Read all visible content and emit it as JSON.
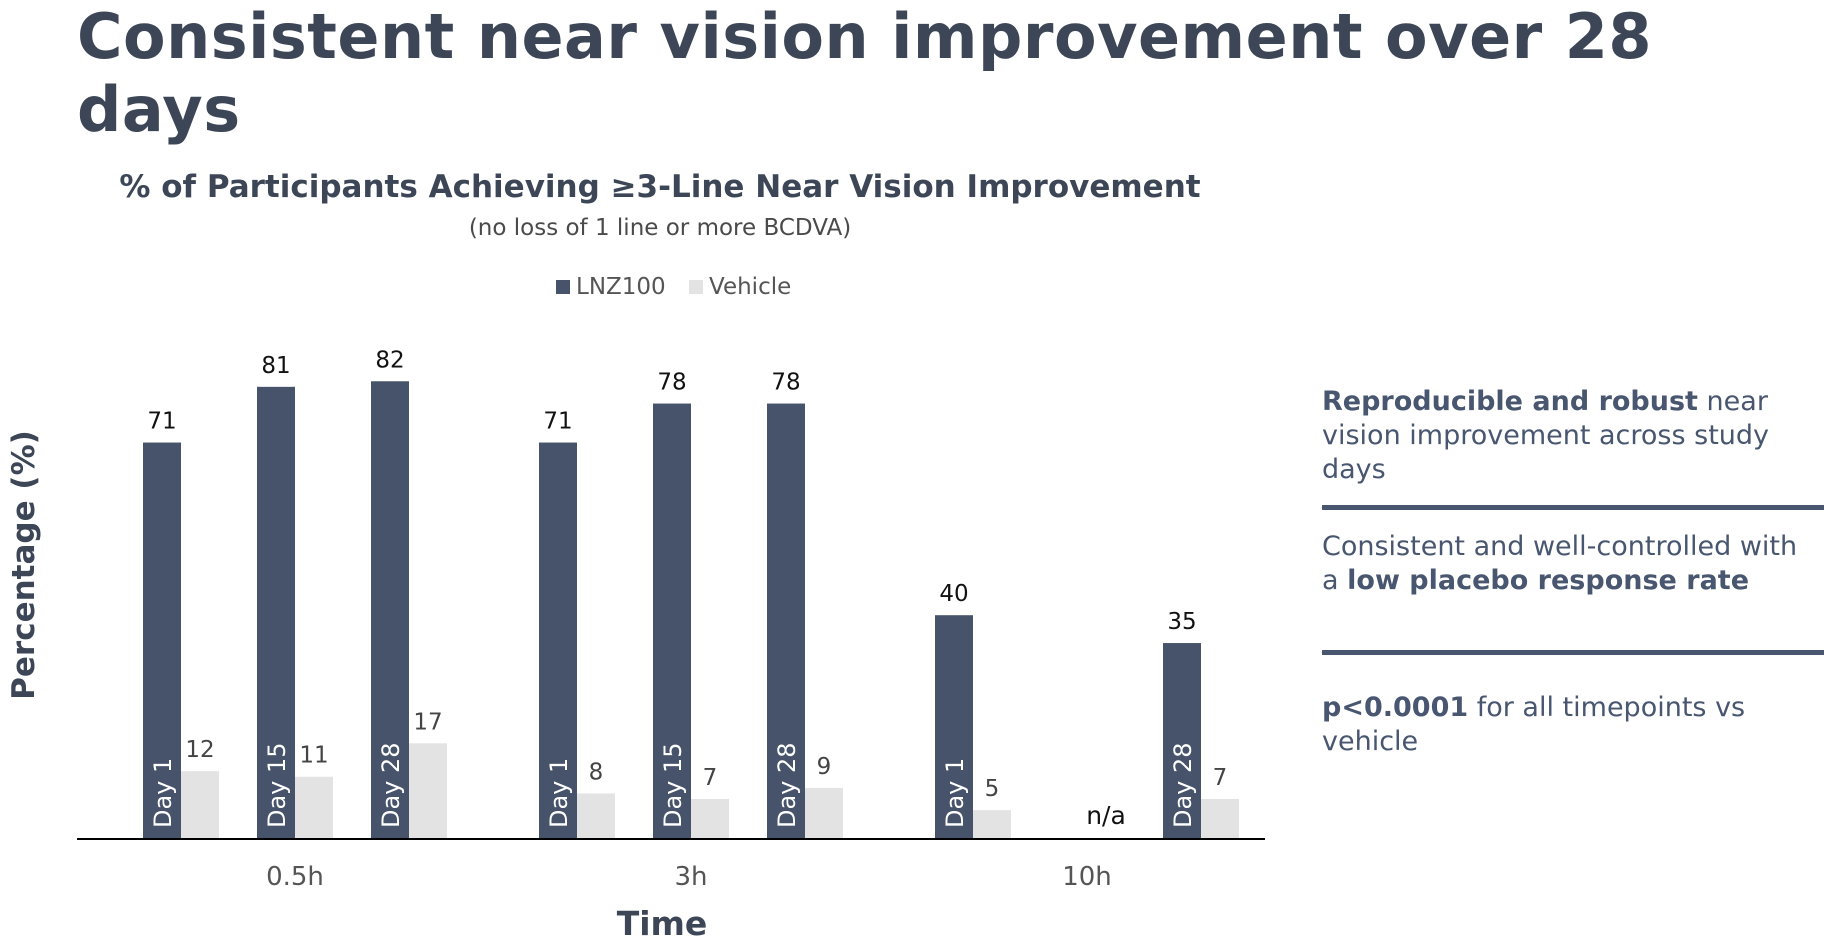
{
  "title": "Consistent near vision improvement over 28 days",
  "callouts": [
    {
      "bold": "Reproducible and robust",
      "text": " near vision improvement across study days"
    },
    {
      "pre": "Consistent and well-controlled with a ",
      "bold": "low placebo response rate"
    },
    {
      "bold": "p<0.0001",
      "text": " for all timepoints vs vehicle"
    }
  ],
  "chart_data": {
    "type": "bar",
    "title": "% of Participants Achieving ≥3-Line Near Vision Improvement",
    "subtitle": "(no loss of 1 line or more BCDVA)",
    "xlabel": "Time",
    "ylabel": "Percentage (%)",
    "legend": {
      "position": "top-center",
      "entries": [
        "LNZ100",
        "Vehicle"
      ]
    },
    "grid": false,
    "ylim": [
      0,
      82
    ],
    "colors": {
      "LNZ100": "#46536a",
      "Vehicle": "#e3e3e3"
    },
    "groups": [
      {
        "label": "0.5h",
        "bars": [
          {
            "day": "Day 1",
            "LNZ100": 71,
            "Vehicle": 12
          },
          {
            "day": "Day 15",
            "LNZ100": 81,
            "Vehicle": 11
          },
          {
            "day": "Day 28",
            "LNZ100": 82,
            "Vehicle": 17
          }
        ]
      },
      {
        "label": "3h",
        "bars": [
          {
            "day": "Day 1",
            "LNZ100": 71,
            "Vehicle": 8
          },
          {
            "day": "Day 15",
            "LNZ100": 78,
            "Vehicle": 7
          },
          {
            "day": "Day 28",
            "LNZ100": 78,
            "Vehicle": 9
          }
        ]
      },
      {
        "label": "10h",
        "bars": [
          {
            "day": "Day 1",
            "LNZ100": 40,
            "Vehicle": 5
          },
          {
            "day": "",
            "LNZ100": null,
            "Vehicle": null,
            "note": "n/a"
          },
          {
            "day": "Day 28",
            "LNZ100": 35,
            "Vehicle": 7
          }
        ]
      }
    ]
  }
}
